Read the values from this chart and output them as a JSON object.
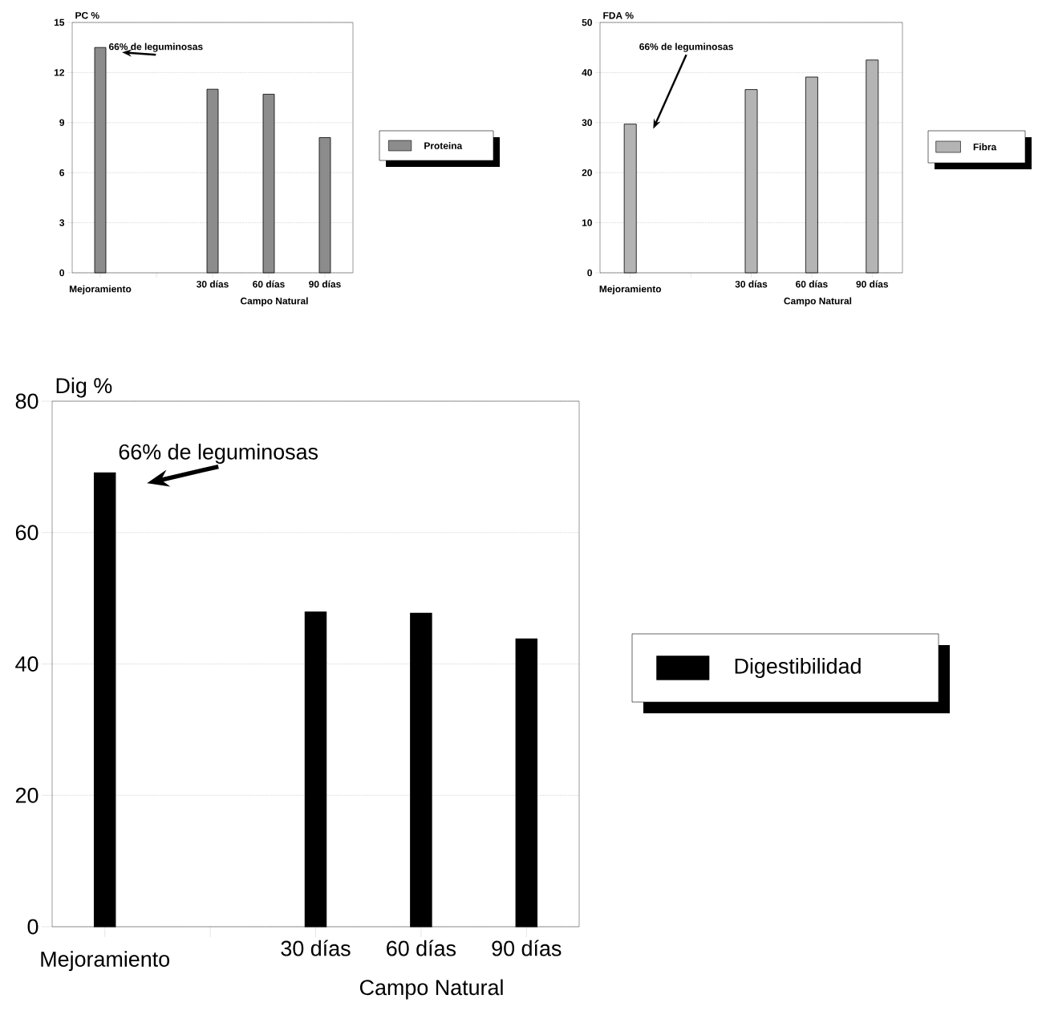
{
  "chart_data": [
    {
      "type": "bar",
      "ylabel": "PC %",
      "categories": [
        "Mejoramiento",
        null,
        "30 días",
        "60 días",
        "90 días"
      ],
      "series": [
        {
          "name": "Proteina",
          "color": "#8c8c8c",
          "values": [
            13.5,
            null,
            11.0,
            10.7,
            8.1
          ]
        }
      ],
      "ylim": [
        0,
        15
      ],
      "yticks": [
        0,
        3,
        6,
        9,
        12,
        15
      ],
      "grid": "y",
      "legend": "right",
      "annotations": [
        "66% de leguminosas",
        "Campo Natural"
      ]
    },
    {
      "type": "bar",
      "ylabel": "FDA %",
      "categories": [
        "Mejoramiento",
        null,
        "30 días",
        "60 días",
        "90 días"
      ],
      "series": [
        {
          "name": "Fibra",
          "color": "#b4b4b4",
          "values": [
            29.7,
            null,
            36.6,
            39.1,
            42.5
          ]
        }
      ],
      "ylim": [
        0,
        50
      ],
      "yticks": [
        0,
        10,
        20,
        30,
        40,
        50
      ],
      "grid": "y",
      "legend": "right",
      "annotations": [
        "66% de leguminosas",
        "Campo Natural"
      ]
    },
    {
      "type": "bar",
      "ylabel": "Dig %",
      "categories": [
        "Mejoramiento",
        null,
        "30 días",
        "60 días",
        "90 días"
      ],
      "series": [
        {
          "name": "Digestibilidad",
          "color": "#000000",
          "values": [
            69.1,
            null,
            47.9,
            47.7,
            43.8
          ]
        }
      ],
      "ylim": [
        0,
        80
      ],
      "yticks": [
        0,
        20,
        40,
        60,
        80
      ],
      "grid": "y",
      "legend": "right",
      "annotations": [
        "66% de leguminosas",
        "Campo Natural"
      ]
    }
  ]
}
